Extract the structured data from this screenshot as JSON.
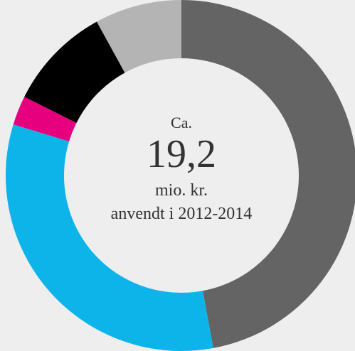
{
  "chart_data": {
    "type": "donut",
    "values": [
      47.1,
      32.6,
      2.7,
      9.6,
      8.0
    ],
    "colors": [
      "#646464",
      "#0db4ea",
      "#e6007e",
      "#000000",
      "#b4b4b4"
    ],
    "center_text": [
      "Ca.",
      "19,2",
      "mio. kr.",
      "anvendt i 2012-2014"
    ]
  }
}
